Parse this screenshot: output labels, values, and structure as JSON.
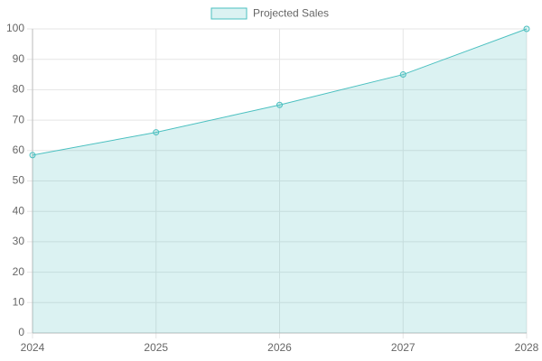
{
  "chart_data": {
    "type": "line",
    "fill": true,
    "grid": true,
    "legend": "top",
    "categories": [
      "2024",
      "2025",
      "2026",
      "2027",
      "2028"
    ],
    "series": [
      {
        "name": "Projected Sales",
        "color": "#4bc0c0",
        "values": [
          58.5,
          66,
          75,
          85,
          100
        ]
      }
    ],
    "ylim": [
      0,
      100
    ],
    "yticks": [
      0,
      10,
      20,
      30,
      40,
      50,
      60,
      70,
      80,
      90,
      100
    ]
  }
}
